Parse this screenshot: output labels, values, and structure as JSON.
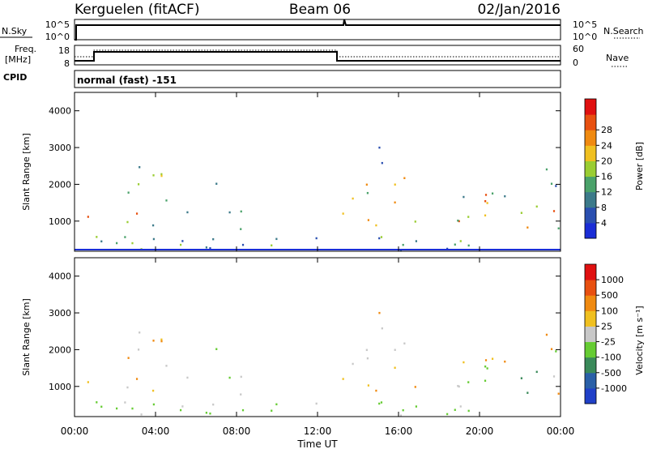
{
  "header": {
    "station": "Kerguelen (fitACF)",
    "beam": "Beam 06",
    "date": "02/Jan/2016",
    "mode": "normal (fast) -151"
  },
  "panels": {
    "nsky": {
      "label": "N.Sky",
      "left_top": "10^5",
      "left_bottom": "10^0",
      "right_top": "10^5",
      "right_bottom": "10^0",
      "right_label": "N.Search"
    },
    "freq": {
      "label_top": "Freq.",
      "label_bottom": "[MHz]",
      "left_top": "18",
      "left_bottom": "8",
      "right_top": "60",
      "right_bottom": "0",
      "right_label": "Nave",
      "cpid_label": "CPID"
    }
  },
  "chart_data": [
    {
      "type": "heatmap",
      "title": "Power",
      "ylabel": "Slant Range [km]",
      "ylim": [
        180,
        4500
      ],
      "yticks": [
        "1000",
        "2000",
        "3000",
        "4000"
      ],
      "xticks": [
        "00:00",
        "04:00",
        "08:00",
        "12:00",
        "16:00",
        "20:00",
        "00:00"
      ],
      "colorbar": {
        "label": "Power [dB]",
        "ticks": [
          "4",
          "8",
          "12",
          "16",
          "20",
          "24",
          "28"
        ],
        "colors": [
          "#1a2dd6",
          "#2a4fb0",
          "#3c7a8a",
          "#4aa26a",
          "#9acd32",
          "#f0c020",
          "#f08a10",
          "#e85010",
          "#e01010"
        ]
      }
    },
    {
      "type": "heatmap",
      "title": "Velocity",
      "ylabel": "Slant Range [km]",
      "ylim": [
        180,
        4500
      ],
      "yticks": [
        "1000",
        "2000",
        "3000",
        "4000"
      ],
      "xticks": [
        "00:00",
        "04:00",
        "08:00",
        "12:00",
        "16:00",
        "20:00",
        "00:00"
      ],
      "xlabel": "Time UT",
      "colorbar": {
        "label": "Velocity [m s⁻¹]",
        "ticks": [
          "1000",
          "500",
          "100",
          "25",
          "-25",
          "-100",
          "-500",
          "-1000"
        ],
        "colors": [
          "#2040c8",
          "#2a60a8",
          "#3a8a5a",
          "#66cc33",
          "#c8c8c8",
          "#f0c020",
          "#f08a10",
          "#e85010",
          "#e01010"
        ]
      }
    }
  ]
}
